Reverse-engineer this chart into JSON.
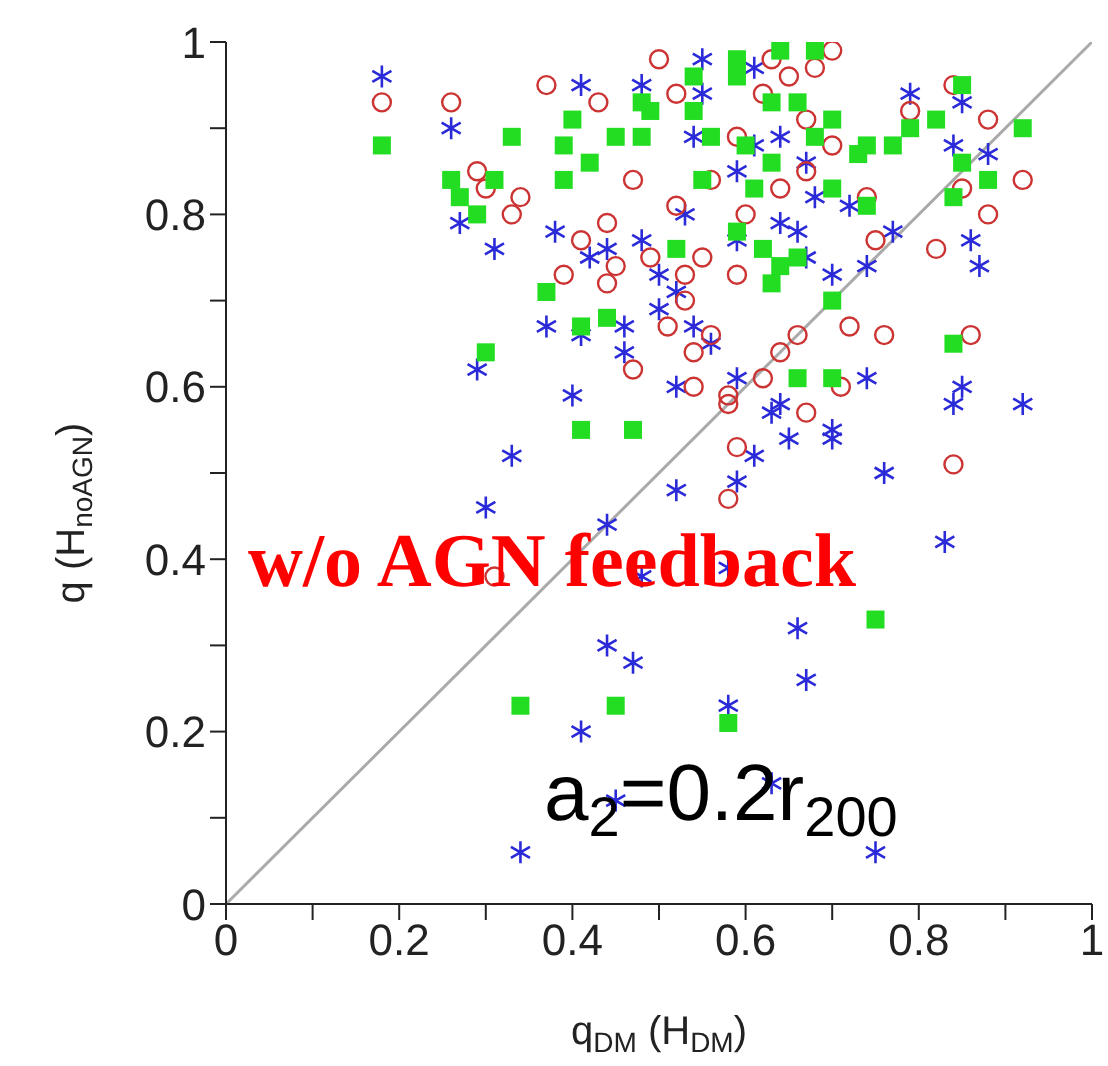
{
  "chart_data": {
    "type": "scatter",
    "xlabel": "q$_{DM}$ (H$_{DM}$)",
    "ylabel": "q (H$_{noAGN}$)",
    "xlim": [
      0,
      1
    ],
    "ylim": [
      0,
      1
    ],
    "xticks": [
      0,
      {
        "value": 0.1,
        "label": null
      },
      0.2,
      {
        "value": 0.3,
        "label": null
      },
      0.4,
      {
        "value": 0.5,
        "label": null
      },
      0.6,
      {
        "value": 0.7,
        "label": null
      },
      0.8,
      {
        "value": 0.9,
        "label": null
      },
      1
    ],
    "yticks": [
      0,
      {
        "value": 0.1,
        "label": null
      },
      0.2,
      {
        "value": 0.3,
        "label": null
      },
      0.4,
      {
        "value": 0.5,
        "label": null
      },
      0.6,
      {
        "value": 0.7,
        "label": null
      },
      0.8,
      {
        "value": 0.9,
        "label": null
      },
      1
    ],
    "annotations": [
      "w/o AGN feedback",
      "a$_{2}$=0.2r$_{200}$"
    ],
    "series": [
      {
        "type": "line",
        "color": "#aaaaaa",
        "x": [
          0,
          1
        ],
        "values": [
          0,
          1
        ]
      },
      {
        "color": "#2a2ad8",
        "marker": "cross",
        "x": [
          0.18,
          0.26,
          0.27,
          0.38,
          0.31,
          0.42,
          0.37,
          0.41,
          0.46,
          0.46,
          0.29,
          0.4,
          0.41,
          0.48,
          0.44,
          0.48,
          0.55,
          0.61,
          0.55,
          0.64,
          0.67,
          0.61,
          0.54,
          0.59,
          0.68,
          0.72,
          0.53,
          0.64,
          0.66,
          0.59,
          0.67,
          0.77,
          0.79,
          0.85,
          0.84,
          0.88,
          0.86,
          0.87,
          0.7,
          0.74,
          0.5,
          0.52,
          0.5,
          0.54,
          0.56,
          0.59,
          0.52,
          0.64,
          0.74,
          0.85,
          0.84,
          0.92,
          0.63,
          0.65,
          0.7,
          0.7,
          0.61,
          0.59,
          0.52,
          0.33,
          0.3,
          0.44,
          0.76,
          0.83,
          0.48,
          0.58,
          0.66,
          0.44,
          0.47,
          0.67,
          0.41,
          0.58,
          0.45,
          0.63,
          0.34,
          0.75
        ],
        "values": [
          0.96,
          0.9,
          0.79,
          0.78,
          0.76,
          0.75,
          0.67,
          0.66,
          0.67,
          0.64,
          0.62,
          0.59,
          0.95,
          0.95,
          0.76,
          0.77,
          0.98,
          0.97,
          0.94,
          0.89,
          0.86,
          0.88,
          0.89,
          0.85,
          0.82,
          0.81,
          0.8,
          0.79,
          0.78,
          0.77,
          0.75,
          0.78,
          0.94,
          0.93,
          0.88,
          0.87,
          0.77,
          0.74,
          0.73,
          0.74,
          0.73,
          0.71,
          0.69,
          0.67,
          0.65,
          0.61,
          0.6,
          0.58,
          0.61,
          0.6,
          0.58,
          0.58,
          0.57,
          0.54,
          0.55,
          0.54,
          0.52,
          0.49,
          0.48,
          0.52,
          0.46,
          0.44,
          0.5,
          0.42,
          0.38,
          0.39,
          0.32,
          0.3,
          0.28,
          0.26,
          0.2,
          0.23,
          0.12,
          0.14,
          0.06,
          0.06
        ]
      },
      {
        "color": "#cc3333",
        "marker": "circle",
        "x": [
          0.18,
          0.26,
          0.37,
          0.29,
          0.3,
          0.34,
          0.33,
          0.39,
          0.41,
          0.44,
          0.45,
          0.44,
          0.47,
          0.43,
          0.47,
          0.5,
          0.63,
          0.7,
          0.68,
          0.65,
          0.62,
          0.52,
          0.67,
          0.59,
          0.7,
          0.67,
          0.56,
          0.64,
          0.74,
          0.52,
          0.6,
          0.79,
          0.84,
          0.88,
          0.92,
          0.85,
          0.88,
          0.75,
          0.82,
          0.49,
          0.55,
          0.59,
          0.53,
          0.53,
          0.51,
          0.54,
          0.56,
          0.72,
          0.76,
          0.86,
          0.64,
          0.66,
          0.62,
          0.54,
          0.71,
          0.58,
          0.67,
          0.59,
          0.58,
          0.84,
          0.31,
          0.58
        ],
        "values": [
          0.93,
          0.93,
          0.95,
          0.85,
          0.83,
          0.82,
          0.8,
          0.73,
          0.77,
          0.79,
          0.74,
          0.72,
          0.62,
          0.93,
          0.84,
          0.98,
          0.98,
          0.99,
          0.97,
          0.96,
          0.94,
          0.94,
          0.91,
          0.89,
          0.88,
          0.85,
          0.84,
          0.83,
          0.82,
          0.81,
          0.8,
          0.92,
          0.95,
          0.91,
          0.84,
          0.83,
          0.8,
          0.77,
          0.76,
          0.75,
          0.75,
          0.73,
          0.73,
          0.7,
          0.67,
          0.64,
          0.66,
          0.67,
          0.66,
          0.66,
          0.64,
          0.66,
          0.61,
          0.6,
          0.6,
          0.59,
          0.57,
          0.53,
          0.47,
          0.51,
          0.38,
          0.58
        ]
      },
      {
        "color": "#22dd22",
        "marker": "square",
        "x": [
          0.18,
          0.26,
          0.27,
          0.29,
          0.33,
          0.31,
          0.37,
          0.41,
          0.44,
          0.3,
          0.39,
          0.4,
          0.42,
          0.45,
          0.48,
          0.39,
          0.59,
          0.64,
          0.68,
          0.59,
          0.54,
          0.63,
          0.66,
          0.7,
          0.49,
          0.54,
          0.56,
          0.68,
          0.74,
          0.77,
          0.73,
          0.79,
          0.82,
          0.85,
          0.92,
          0.85,
          0.88,
          0.84,
          0.6,
          0.63,
          0.55,
          0.61,
          0.7,
          0.74,
          0.59,
          0.62,
          0.52,
          0.66,
          0.64,
          0.63,
          0.7,
          0.84,
          0.66,
          0.7,
          0.48,
          0.41,
          0.47,
          0.75,
          0.34,
          0.45,
          0.58
        ],
        "values": [
          0.88,
          0.84,
          0.82,
          0.8,
          0.89,
          0.84,
          0.71,
          0.67,
          0.68,
          0.64,
          0.88,
          0.91,
          0.86,
          0.89,
          0.93,
          0.84,
          0.98,
          0.99,
          0.99,
          0.96,
          0.96,
          0.93,
          0.93,
          0.91,
          0.92,
          0.92,
          0.89,
          0.89,
          0.88,
          0.88,
          0.87,
          0.9,
          0.91,
          0.95,
          0.9,
          0.86,
          0.84,
          0.82,
          0.88,
          0.86,
          0.84,
          0.83,
          0.83,
          0.81,
          0.78,
          0.76,
          0.76,
          0.75,
          0.74,
          0.72,
          0.7,
          0.65,
          0.61,
          0.61,
          0.89,
          0.55,
          0.55,
          0.33,
          0.23,
          0.23,
          0.21
        ]
      }
    ]
  }
}
